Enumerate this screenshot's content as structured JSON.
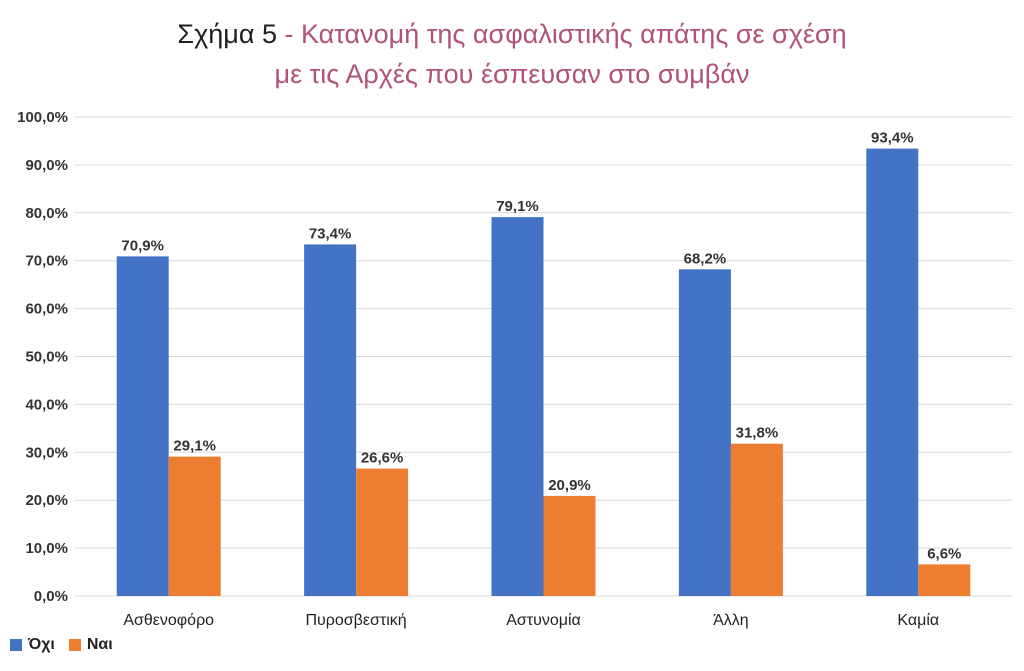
{
  "title": {
    "prefix": "Σχήμα 5",
    "line1": " - Κατανομή της ασφαλιστικής απάτης σε σχέση",
    "line2": "με τις Αρχές που έσπευσαν στο συμβάν"
  },
  "colors": {
    "series1": "#4472c4",
    "series2": "#ed7d31",
    "grid": "#d9d9d9",
    "title_accent": "#b0527c"
  },
  "chart_data": {
    "type": "bar",
    "title": "Σχήμα 5 - Κατανομή της ασφαλιστικής απάτης σε σχέση με τις Αρχές που έσπευσαν στο συμβάν",
    "categories": [
      "Ασθενοφόρο",
      "Πυροσβεστική",
      "Αστυνομία",
      "Άλλη",
      "Καμία"
    ],
    "series": [
      {
        "name": "Όχι",
        "values": [
          70.9,
          73.4,
          79.1,
          68.2,
          93.4
        ],
        "labels": [
          "70,9%",
          "73,4%",
          "79,1%",
          "68,2%",
          "93,4%"
        ]
      },
      {
        "name": "Ναι",
        "values": [
          29.1,
          26.6,
          20.9,
          31.8,
          6.6
        ],
        "labels": [
          "29,1%",
          "26,6%",
          "20,9%",
          "31,8%",
          "6,6%"
        ]
      }
    ],
    "ylim": [
      0,
      100
    ],
    "yticks": [
      0,
      10,
      20,
      30,
      40,
      50,
      60,
      70,
      80,
      90,
      100
    ],
    "ytick_labels": [
      "0,0%",
      "10,0%",
      "20,0%",
      "30,0%",
      "40,0%",
      "50,0%",
      "60,0%",
      "70,0%",
      "80,0%",
      "90,0%",
      "100,0%"
    ],
    "grid": true,
    "legend_position": "bottom-left"
  }
}
